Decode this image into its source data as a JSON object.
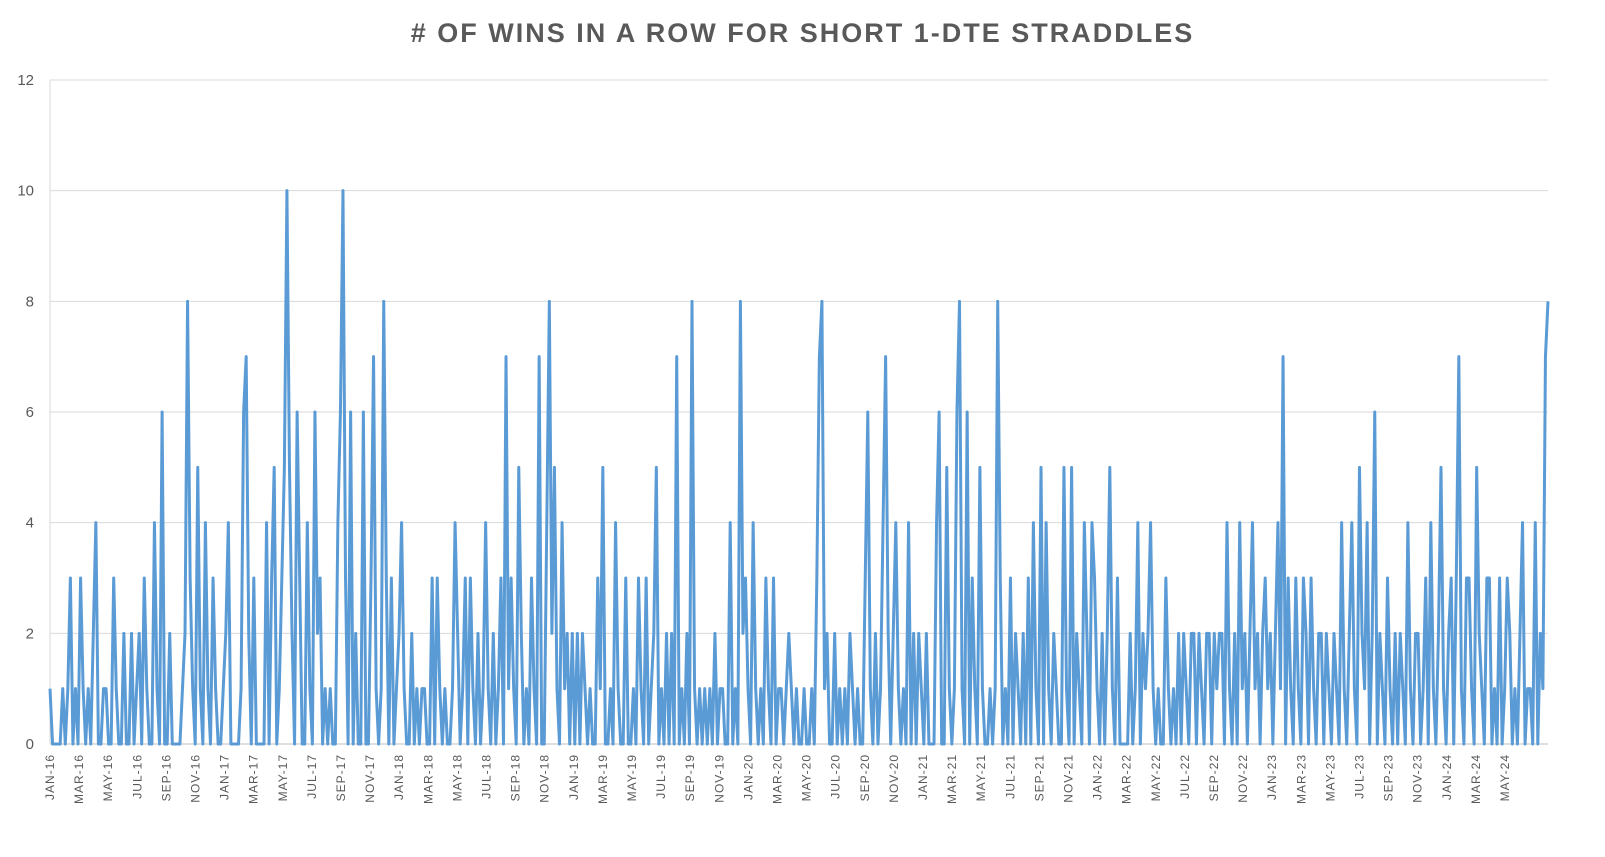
{
  "chart_data": {
    "type": "line",
    "title": "# OF WINS IN A ROW FOR SHORT 1-DTE STRADDLES",
    "xlabel": "",
    "ylabel": "",
    "ylim": [
      0,
      12
    ],
    "yticks": [
      0,
      2,
      4,
      6,
      8,
      10,
      12
    ],
    "grid": "horizontal",
    "legend": "none",
    "line_color": "#5B9BD5",
    "xtick_labels": [
      "JAN-16",
      "MAR-16",
      "MAY-16",
      "JUL-16",
      "SEP-16",
      "NOV-16",
      "JAN-17",
      "MAR-17",
      "MAY-17",
      "JUL-17",
      "SEP-17",
      "NOV-17",
      "JAN-18",
      "MAR-18",
      "MAY-18",
      "JUL-18",
      "SEP-18",
      "NOV-18",
      "JAN-19",
      "MAR-19",
      "MAY-19",
      "JUL-19",
      "SEP-19",
      "NOV-19",
      "JAN-20",
      "MAR-20",
      "MAY-20",
      "JUL-20",
      "SEP-20",
      "NOV-20",
      "JAN-21",
      "MAR-21",
      "MAY-21",
      "JUL-21",
      "SEP-21",
      "NOV-21",
      "JAN-22",
      "MAR-22",
      "MAY-22",
      "JUL-22",
      "SEP-22",
      "NOV-22",
      "JAN-23",
      "MAR-23",
      "MAY-23",
      "JUL-23",
      "SEP-23",
      "NOV-23",
      "JAN-24",
      "MAR-24",
      "MAY-24"
    ],
    "series": [
      {
        "name": "",
        "x_range": [
          "2016-01-04",
          "2024-07-12"
        ],
        "values": [
          1,
          0,
          0,
          0,
          0,
          1,
          0,
          1,
          3,
          0,
          1,
          0,
          3,
          1,
          0,
          1,
          0,
          2,
          4,
          0,
          0,
          1,
          1,
          0,
          0,
          3,
          1,
          0,
          0,
          2,
          0,
          0,
          2,
          0,
          1,
          2,
          0,
          3,
          1,
          0,
          0,
          4,
          1,
          0,
          6,
          0,
          0,
          2,
          0,
          0,
          0,
          0,
          1,
          2,
          8,
          3,
          1,
          0,
          5,
          1,
          0,
          4,
          1,
          0,
          3,
          1,
          0,
          0,
          1,
          2,
          4,
          0,
          0,
          0,
          0,
          1,
          6,
          7,
          2,
          0,
          3,
          0,
          0,
          0,
          0,
          4,
          0,
          3,
          5,
          0,
          1,
          3,
          5,
          10,
          5,
          2,
          0,
          6,
          3,
          0,
          0,
          4,
          1,
          0,
          6,
          2,
          3,
          0,
          1,
          0,
          1,
          0,
          0,
          4,
          6,
          10,
          3,
          0,
          6,
          0,
          2,
          0,
          0,
          6,
          0,
          0,
          3,
          7,
          1,
          0,
          1,
          8,
          3,
          0,
          3,
          0,
          1,
          2,
          4,
          1,
          0,
          0,
          2,
          0,
          1,
          0,
          1,
          1,
          0,
          0,
          3,
          0,
          3,
          1,
          0,
          1,
          0,
          0,
          1,
          4,
          2,
          0,
          1,
          3,
          0,
          3,
          1,
          0,
          2,
          0,
          1,
          4,
          1,
          0,
          2,
          0,
          1,
          3,
          0,
          7,
          1,
          3,
          1,
          0,
          5,
          2,
          0,
          1,
          0,
          3,
          1,
          0,
          7,
          0,
          0,
          4,
          8,
          2,
          5,
          1,
          0,
          4,
          1,
          2,
          0,
          2,
          0,
          2,
          0,
          2,
          1,
          0,
          1,
          0,
          0,
          3,
          1,
          5,
          0,
          0,
          1,
          0,
          4,
          1,
          0,
          0,
          3,
          0,
          0,
          1,
          0,
          3,
          1,
          0,
          3,
          0,
          1,
          2,
          5,
          0,
          1,
          0,
          2,
          0,
          2,
          0,
          7,
          0,
          1,
          0,
          2,
          0,
          8,
          1,
          0,
          1,
          0,
          1,
          0,
          1,
          0,
          2,
          0,
          1,
          1,
          0,
          0,
          4,
          0,
          1,
          0,
          8,
          2,
          3,
          1,
          0,
          4,
          1,
          0,
          1,
          0,
          3,
          1,
          0,
          3,
          0,
          1,
          1,
          0,
          1,
          2,
          1,
          0,
          1,
          0,
          0,
          1,
          0,
          0,
          1,
          0,
          3,
          7,
          8,
          1,
          2,
          0,
          0,
          2,
          0,
          1,
          0,
          1,
          0,
          2,
          1,
          0,
          1,
          0,
          0,
          3,
          6,
          1,
          0,
          2,
          0,
          1,
          4,
          7,
          2,
          0,
          2,
          4,
          1,
          0,
          1,
          0,
          4,
          0,
          2,
          0,
          2,
          1,
          0,
          2,
          0,
          0,
          0,
          4,
          6,
          0,
          0,
          5,
          1,
          0,
          1,
          6,
          8,
          1,
          0,
          6,
          0,
          3,
          1,
          0,
          5,
          1,
          0,
          0,
          1,
          0,
          1,
          8,
          3,
          0,
          1,
          0,
          3,
          0,
          2,
          1,
          0,
          2,
          0,
          3,
          0,
          4,
          1,
          0,
          5,
          0,
          4,
          1,
          0,
          2,
          1,
          0,
          0,
          5,
          1,
          0,
          5,
          0,
          2,
          1,
          0,
          4,
          2,
          0,
          4,
          3,
          1,
          0,
          2,
          0,
          2,
          5,
          1,
          0,
          3,
          0,
          0,
          0,
          0,
          2,
          0,
          1,
          4,
          0,
          2,
          1,
          2,
          4,
          1,
          0,
          1,
          0,
          0,
          3,
          1,
          0,
          1,
          0,
          2,
          0,
          2,
          1,
          0,
          2,
          2,
          0,
          2,
          1,
          0,
          2,
          2,
          0,
          2,
          1,
          2,
          2,
          0,
          4,
          1,
          0,
          2,
          0,
          4,
          1,
          2,
          0,
          2,
          4,
          1,
          2,
          0,
          2,
          3,
          1,
          2,
          0,
          2,
          4,
          1,
          7,
          0,
          3,
          1,
          0,
          3,
          1,
          0,
          3,
          2,
          0,
          3,
          1,
          0,
          2,
          2,
          0,
          2,
          1,
          0,
          2,
          1,
          0,
          4,
          1,
          0,
          2,
          4,
          1,
          0,
          5,
          2,
          1,
          4,
          0,
          2,
          6,
          0,
          2,
          1,
          0,
          3,
          1,
          0,
          2,
          0,
          2,
          1,
          0,
          4,
          1,
          0,
          2,
          2,
          0,
          1,
          3,
          0,
          4,
          1,
          0,
          2,
          5,
          1,
          0,
          2,
          3,
          0,
          3,
          7,
          1,
          0,
          3,
          3,
          1,
          0,
          5,
          2,
          1,
          0,
          3,
          3,
          0,
          1,
          0,
          3,
          0,
          1,
          3,
          2,
          0,
          1,
          0,
          2,
          4,
          0,
          1,
          1,
          0,
          4,
          0,
          2,
          1,
          7,
          8
        ]
      }
    ]
  }
}
